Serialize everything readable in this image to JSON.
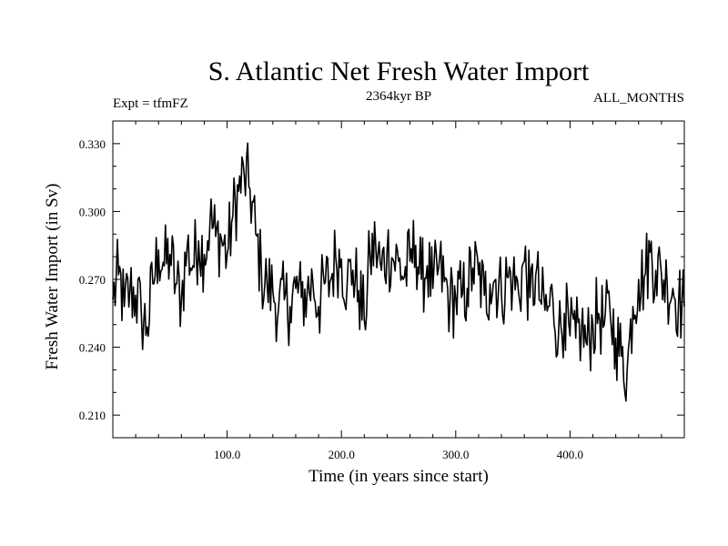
{
  "chart_data": {
    "type": "line",
    "title": "S. Atlantic Net Fresh Water Import",
    "subtitle_left": "Expt = tfmFZ",
    "subtitle_center": "2364kyr BP",
    "subtitle_right": "ALL_MONTHS",
    "xlabel": "Time (in years since start)",
    "ylabel": "Fresh Water Import (in Sv)",
    "xlim": [
      0,
      500
    ],
    "ylim": [
      0.2,
      0.34
    ],
    "xticks": [
      100,
      200,
      300,
      400
    ],
    "xtick_labels": [
      "100.0",
      "200.0",
      "300.0",
      "400.0"
    ],
    "yticks": [
      0.21,
      0.24,
      0.27,
      0.3,
      0.33
    ],
    "ytick_labels": [
      "0.210",
      "0.240",
      "0.270",
      "0.300",
      "0.330"
    ],
    "series": [
      {
        "name": "Fresh Water Import",
        "x": [
          0,
          5,
          10,
          15,
          20,
          25,
          30,
          35,
          40,
          45,
          50,
          55,
          60,
          65,
          70,
          75,
          80,
          85,
          90,
          95,
          100,
          105,
          110,
          115,
          120,
          125,
          130,
          135,
          140,
          145,
          150,
          155,
          160,
          165,
          170,
          175,
          180,
          185,
          190,
          195,
          200,
          205,
          210,
          215,
          220,
          225,
          230,
          235,
          240,
          245,
          250,
          255,
          260,
          265,
          270,
          275,
          280,
          285,
          290,
          295,
          300,
          305,
          310,
          315,
          320,
          325,
          330,
          335,
          340,
          345,
          350,
          355,
          360,
          365,
          370,
          375,
          380,
          385,
          390,
          395,
          400,
          405,
          410,
          415,
          420,
          425,
          430,
          435,
          440,
          445,
          450,
          455,
          460,
          465,
          470,
          475,
          480,
          485,
          490,
          495,
          500
        ],
        "values": [
          0.261,
          0.272,
          0.258,
          0.265,
          0.263,
          0.254,
          0.249,
          0.268,
          0.283,
          0.276,
          0.281,
          0.268,
          0.262,
          0.284,
          0.276,
          0.287,
          0.281,
          0.296,
          0.289,
          0.288,
          0.281,
          0.298,
          0.309,
          0.316,
          0.31,
          0.29,
          0.273,
          0.267,
          0.265,
          0.257,
          0.261,
          0.258,
          0.266,
          0.262,
          0.264,
          0.269,
          0.258,
          0.268,
          0.269,
          0.28,
          0.279,
          0.268,
          0.274,
          0.265,
          0.252,
          0.28,
          0.285,
          0.274,
          0.283,
          0.279,
          0.278,
          0.271,
          0.278,
          0.285,
          0.27,
          0.276,
          0.266,
          0.275,
          0.269,
          0.26,
          0.262,
          0.262,
          0.266,
          0.275,
          0.272,
          0.263,
          0.268,
          0.27,
          0.264,
          0.271,
          0.27,
          0.264,
          0.278,
          0.262,
          0.272,
          0.259,
          0.256,
          0.261,
          0.246,
          0.255,
          0.245,
          0.244,
          0.248,
          0.241,
          0.25,
          0.255,
          0.25,
          0.256,
          0.244,
          0.236,
          0.23,
          0.258,
          0.27,
          0.271,
          0.282,
          0.274,
          0.272,
          0.268,
          0.266,
          0.26,
          0.258
        ]
      }
    ]
  }
}
